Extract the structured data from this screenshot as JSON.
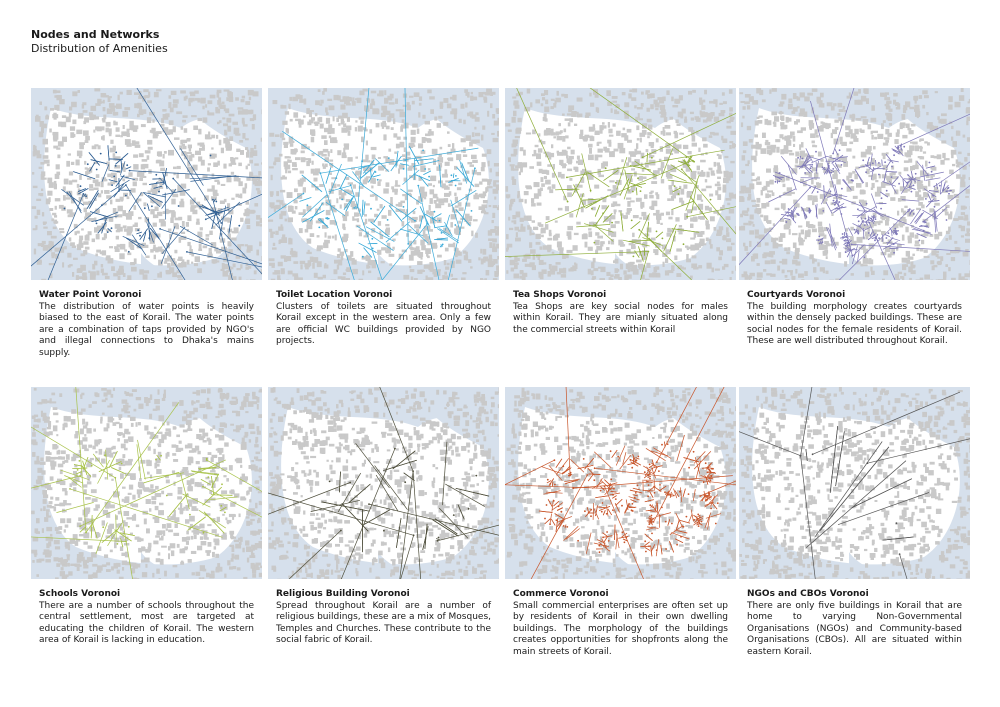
{
  "header": {
    "title": "Nodes and Networks",
    "subtitle": "Distribution of Amenities"
  },
  "colors": {
    "water": "#d6e0ec",
    "building": "#c9c9c9",
    "background": "#ffffff"
  },
  "panels": [
    {
      "title": "Water Point Voronoi",
      "text": "The distribution of water points is heavily biased to the east of Korail. The water points are a combination of taps provided by NGO's and illegal connections to Dhaka's mains supply.",
      "line_color": "#2f5f93"
    },
    {
      "title": "Toilet Location Voronoi",
      "text": "Clusters of toilets are situated throughout Korail except in the western area. Only a few are official WC buildings provided by NGO projects.",
      "line_color": "#3aaad8"
    },
    {
      "title": "Tea Shops Voronoi",
      "text": "Tea Shops are key social nodes for males within Korail. They are mianly situated along the commercial streets within Korail",
      "line_color": "#8fae3a"
    },
    {
      "title": "Courtyards Voronoi",
      "text": "The building morphology creates courtyards within the densely packed buildings. These are social nodes for the female residents of Korail. These are well distributed throughout Korail.",
      "line_color": "#7e78b8"
    },
    {
      "title": "Schools Voronoi",
      "text": "There are a number of schools throughout the central settlement, most are targeted at educating the children of Korail. The western area of Korail is lacking in education.",
      "line_color": "#a8c24a"
    },
    {
      "title": "Religious Building Voronoi",
      "text": "Spread throughout Korail are a number of religious buildings, these are a mix of Mosques, Temples and Churches. These contribute to the social fabric of Korail.",
      "line_color": "#4d4d3a"
    },
    {
      "title": "Commerce Voronoi",
      "text": "Small commercial enterprises are often set up by residents of Korail in their own dwelling buildings. The morphology of the buildings creates opportunities for shopfronts along the main streets of Korail.",
      "line_color": "#c8552a"
    },
    {
      "title": "NGOs and CBOs Voronoi",
      "text": "There are only five buildings in Korail that are home to varying Non-Governmental Organisations (NGOs) and Community-based Organisations (CBOs). All are situated within eastern Korail.",
      "line_color": "#555555"
    }
  ]
}
